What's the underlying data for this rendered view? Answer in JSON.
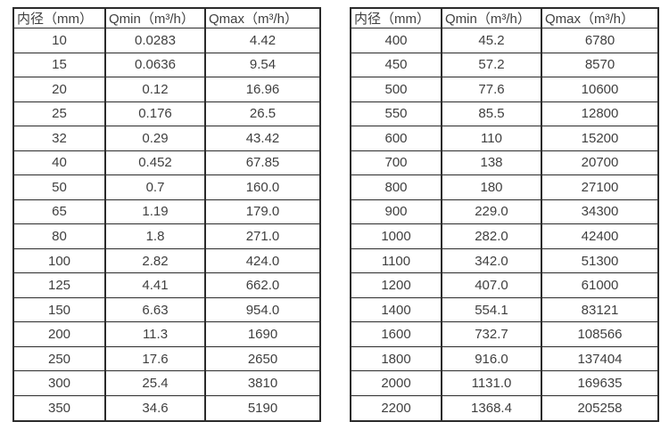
{
  "columns": {
    "diameter": "内径（mm）",
    "qmin": "Qmin（m³/h）",
    "qmax": "Qmax（m³/h）"
  },
  "left_table": {
    "rows": [
      {
        "d": "10",
        "qmin": "0.0283",
        "qmax": "4.42"
      },
      {
        "d": "15",
        "qmin": "0.0636",
        "qmax": "9.54"
      },
      {
        "d": "20",
        "qmin": "0.12",
        "qmax": "16.96"
      },
      {
        "d": "25",
        "qmin": "0.176",
        "qmax": "26.5"
      },
      {
        "d": "32",
        "qmin": "0.29",
        "qmax": "43.42"
      },
      {
        "d": "40",
        "qmin": "0.452",
        "qmax": "67.85"
      },
      {
        "d": "50",
        "qmin": "0.7",
        "qmax": "160.0"
      },
      {
        "d": "65",
        "qmin": "1.19",
        "qmax": "179.0"
      },
      {
        "d": "80",
        "qmin": "1.8",
        "qmax": "271.0"
      },
      {
        "d": "100",
        "qmin": "2.82",
        "qmax": "424.0"
      },
      {
        "d": "125",
        "qmin": "4.41",
        "qmax": "662.0"
      },
      {
        "d": "150",
        "qmin": "6.63",
        "qmax": "954.0"
      },
      {
        "d": "200",
        "qmin": "11.3",
        "qmax": "1690"
      },
      {
        "d": "250",
        "qmin": "17.6",
        "qmax": "2650"
      },
      {
        "d": "300",
        "qmin": "25.4",
        "qmax": "3810"
      },
      {
        "d": "350",
        "qmin": "34.6",
        "qmax": "5190"
      }
    ]
  },
  "right_table": {
    "rows": [
      {
        "d": "400",
        "qmin": "45.2",
        "qmax": "6780"
      },
      {
        "d": "450",
        "qmin": "57.2",
        "qmax": "8570"
      },
      {
        "d": "500",
        "qmin": "77.6",
        "qmax": "10600"
      },
      {
        "d": "550",
        "qmin": "85.5",
        "qmax": "12800"
      },
      {
        "d": "600",
        "qmin": "110",
        "qmax": "15200"
      },
      {
        "d": "700",
        "qmin": "138",
        "qmax": "20700"
      },
      {
        "d": "800",
        "qmin": "180",
        "qmax": "27100"
      },
      {
        "d": "900",
        "qmin": "229.0",
        "qmax": "34300"
      },
      {
        "d": "1000",
        "qmin": "282.0",
        "qmax": "42400"
      },
      {
        "d": "1100",
        "qmin": "342.0",
        "qmax": "51300"
      },
      {
        "d": "1200",
        "qmin": "407.0",
        "qmax": "61000"
      },
      {
        "d": "1400",
        "qmin": "554.1",
        "qmax": "83121"
      },
      {
        "d": "1600",
        "qmin": "732.7",
        "qmax": "108566"
      },
      {
        "d": "1800",
        "qmin": "916.0",
        "qmax": "137404"
      },
      {
        "d": "2000",
        "qmin": "1131.0",
        "qmax": "169635"
      },
      {
        "d": "2200",
        "qmin": "1368.4",
        "qmax": "205258"
      }
    ]
  },
  "colors": {
    "border": "#2b2b2b",
    "text": "#3f3f3f",
    "background": "#ffffff"
  }
}
